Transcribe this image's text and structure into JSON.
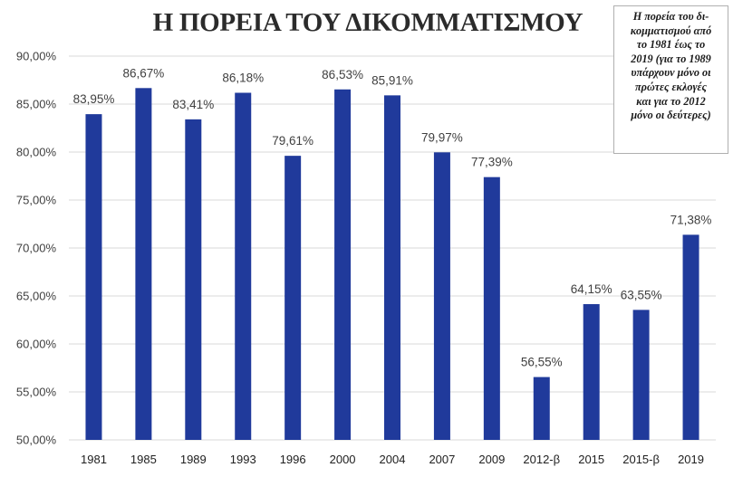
{
  "chart_data": {
    "type": "bar",
    "title": "Η ΠΟΡΕΙΑ ΤΟΥ ΔΙΚΟΜΜΑΤΙΣΜΟΥ",
    "annotation": "Η πορεία του δι-\nκομματισμού από\nτο 1981 έως το\n2019 (για το 1989\nυπάρχουν μόνο οι\nπρώτες εκλογές\nκαι για το 2012\nμόνο οι δεύτερες)",
    "categories": [
      "1981",
      "1985",
      "1989",
      "1993",
      "1996",
      "2000",
      "2004",
      "2007",
      "2009",
      "2012-β",
      "2015",
      "2015-β",
      "2019"
    ],
    "values": [
      83.95,
      86.67,
      83.41,
      86.18,
      79.61,
      86.53,
      85.91,
      79.97,
      77.39,
      56.55,
      64.15,
      63.55,
      71.38
    ],
    "data_labels": [
      "83,95%",
      "86,67%",
      "83,41%",
      "86,18%",
      "79,61%",
      "86,53%",
      "85,91%",
      "79,97%",
      "77,39%",
      "56,55%",
      "64,15%",
      "63,55%",
      "71,38%"
    ],
    "ylim": [
      50,
      90
    ],
    "y_ticks": [
      50,
      55,
      60,
      65,
      70,
      75,
      80,
      85,
      90
    ],
    "y_tick_labels": [
      "50,00%",
      "55,00%",
      "60,00%",
      "65,00%",
      "70,00%",
      "75,00%",
      "80,00%",
      "85,00%",
      "90,00%"
    ],
    "xlabel": "",
    "ylabel": "",
    "grid": true,
    "bar_color": "#203a9b",
    "grid_color": "#d9d9d9"
  }
}
